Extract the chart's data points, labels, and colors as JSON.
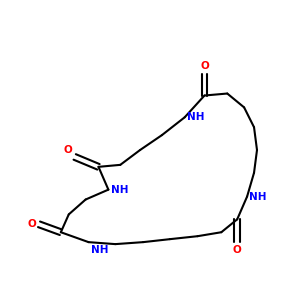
{
  "bg_color": "#ffffff",
  "bond_color": "#000000",
  "N_color": "#0000ff",
  "O_color": "#ff0000",
  "font_size": 7.5,
  "line_width": 1.5,
  "fig_size": [
    3.0,
    3.0
  ],
  "dpi": 100,
  "xlim": [
    0.0,
    10.0
  ],
  "ylim": [
    0.5,
    10.5
  ]
}
